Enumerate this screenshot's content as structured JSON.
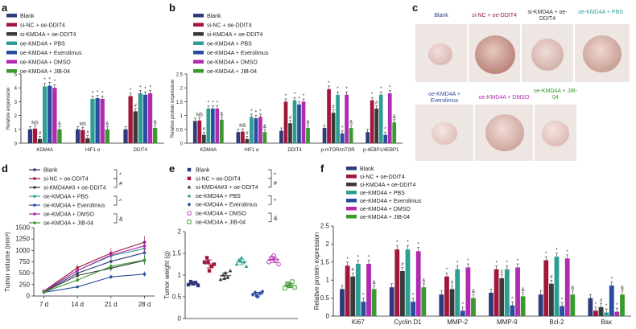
{
  "panel_labels": {
    "a": "a",
    "b": "b",
    "c": "c",
    "d": "d",
    "e": "e",
    "f": "f"
  },
  "colors": {
    "Blank": "#2e3a7c",
    "si-NC + oe-DDIT4": "#a1163a",
    "si-KMD4A + oe-DDIT4": "#3a3a3a",
    "oe-KMD4A + PBS": "#2e9e94",
    "oe-KMD4A + Everolimus": "#2a4da0",
    "oe-KMD4A + DMSO": "#b22ab0",
    "oe-KMD4A + JIB-04": "#3a9a2e"
  },
  "legends": {
    "a": [
      "Blank",
      "si-NC + oe-DDIT4",
      "si-KMD4A + oe-DDIT4",
      "oe-KMD4A + PBS",
      "oe-KMD4A + Everolimus",
      "oe-KMD4A + DMSO",
      "oe-KMD4A + JIB-04"
    ],
    "b": [
      "Blank",
      "si-NC + oe-DDIT4",
      "si-KMD4A + oe-DDIT4",
      "oe-KMD4A + PBS",
      "oe-KMD4A + Everolimus",
      "oe-KMD4A + DMSO",
      "oe-KMD4A + JIB-04"
    ],
    "d": [
      "Blank",
      "si-NC + oe-DDIT4",
      "si-KMD4A#3 + oe-DDIT4",
      "oe-KMD4A + PBS",
      "oe-KMD4A + Everolimus",
      "oe-KMD4A + DMSO",
      "oe-KMD4A + JIB-04"
    ],
    "e": [
      "Blank",
      "si-NC + oe-DDIT4",
      "si-KMD4A#3 + oe-DDIT4",
      "oe-KMD4A + PBS",
      "oe-KMD4A + Everolimus",
      "oe-KMD4A + DMSO",
      "oe-KMD4A + JIB-04"
    ],
    "f": [
      "Blank",
      "si-NC + oe-DDIT4",
      "si-KMD4A + oe-DDIT4",
      "oe-KMD4A + PBS",
      "oe-KMD4A + Everolimus",
      "oe-KMD4A + DMSO",
      "oe-KMD4A + JIB-04"
    ]
  },
  "legend_marks": {
    "d": [
      "*",
      "#",
      "^",
      "&"
    ],
    "e": [
      "*",
      "#",
      "^",
      "&"
    ]
  },
  "photo_labels": [
    "Blank",
    "si-NC + oe-DDIT4",
    "si-KMD4A + oe-DDIT4",
    "oe-KMD4A + PBS",
    "oe-KMD4A + Everolimus",
    "oe-KMD4A + DMSO",
    "oe-KMD4A + JIB-04"
  ],
  "chart_data": [
    {
      "id": "a",
      "type": "bar",
      "ylabel": "Relative expression",
      "ylim": [
        0,
        5
      ],
      "yticks": [
        0,
        1,
        2,
        3,
        4,
        5
      ],
      "categories": [
        "KDM4A",
        "HIF1 α",
        "DDIT4"
      ],
      "series": [
        {
          "name": "Blank",
          "values": [
            1.0,
            1.0,
            1.0
          ]
        },
        {
          "name": "si-NC + oe-DDIT4",
          "values": [
            1.05,
            0.95,
            3.4
          ]
        },
        {
          "name": "si-KMD4A + oe-DDIT4",
          "values": [
            0.3,
            0.35,
            2.3
          ]
        },
        {
          "name": "oe-KMD4A + PBS",
          "values": [
            4.1,
            3.2,
            3.6
          ]
        },
        {
          "name": "oe-KMD4A + Everolimus",
          "values": [
            4.15,
            3.25,
            3.5
          ]
        },
        {
          "name": "oe-KMD4A + DMSO",
          "values": [
            4.0,
            3.2,
            3.6
          ]
        },
        {
          "name": "oe-KMD4A + JIB-04",
          "values": [
            1.0,
            1.0,
            1.1
          ]
        }
      ],
      "annotations": [
        {
          "category": "KDM4A",
          "marks": [
            "",
            "NS",
            "#",
            "*",
            "*",
            "*",
            "&"
          ]
        },
        {
          "category": "HIF1 α",
          "marks": [
            "",
            "NS",
            "#",
            "*",
            "*",
            "*",
            "&"
          ]
        },
        {
          "category": "DDIT4",
          "marks": [
            "",
            "*",
            "#",
            "*",
            "*",
            "*",
            "&"
          ]
        }
      ]
    },
    {
      "id": "b",
      "type": "bar",
      "ylabel": "Relative protein expression",
      "ylim": [
        0,
        2.5
      ],
      "yticks": [
        0,
        0.5,
        1,
        1.5,
        2,
        2.5
      ],
      "categories": [
        "KDM4A",
        "HIF1 α",
        "DDIT4",
        "p-mTOR/mTOR",
        "p-4EBP1/4EBP1"
      ],
      "series": [
        {
          "name": "Blank",
          "values": [
            0.8,
            0.4,
            0.45,
            0.55,
            0.4
          ]
        },
        {
          "name": "si-NC + oe-DDIT4",
          "values": [
            0.82,
            0.42,
            1.5,
            1.95,
            1.55
          ]
        },
        {
          "name": "si-KMD4A + oe-DDIT4",
          "values": [
            0.3,
            0.15,
            0.72,
            1.1,
            1.25
          ]
        },
        {
          "name": "oe-KMD4A + PBS",
          "values": [
            1.25,
            0.95,
            1.55,
            1.75,
            1.75
          ]
        },
        {
          "name": "oe-KMD4A + Everolimus",
          "values": [
            1.25,
            0.9,
            1.4,
            0.35,
            0.3
          ]
        },
        {
          "name": "oe-KMD4A + DMSO",
          "values": [
            1.25,
            0.95,
            1.5,
            1.75,
            1.8
          ]
        },
        {
          "name": "oe-KMD4A + JIB-04",
          "values": [
            0.85,
            0.4,
            0.55,
            0.55,
            0.75
          ]
        }
      ],
      "annotations": [
        {
          "category": "KDM4A",
          "marks": [
            "",
            "NS",
            "#",
            "*",
            "*",
            "*",
            "&"
          ]
        },
        {
          "category": "HIF1 α",
          "marks": [
            "",
            "NS",
            "#",
            "*",
            "*",
            "*",
            "&"
          ]
        },
        {
          "category": "DDIT4",
          "marks": [
            "",
            "*",
            "#",
            "*",
            "*",
            "*",
            "&"
          ]
        },
        {
          "category": "p-mTOR/mTOR",
          "marks": [
            "",
            "*",
            "#",
            "*",
            "^",
            "*",
            "&"
          ]
        },
        {
          "category": "p-4EBP1/4EBP1",
          "marks": [
            "",
            "*",
            "#",
            "*",
            "^",
            "*",
            "&"
          ]
        }
      ]
    },
    {
      "id": "d",
      "type": "line",
      "title": "",
      "xlabel": "",
      "ylabel": "Tumor volume (mm³)",
      "x": [
        "7 d",
        "14 d",
        "21 d",
        "28 d"
      ],
      "ylim": [
        0,
        1500
      ],
      "yticks": [
        0,
        250,
        500,
        750,
        1000,
        1250,
        1500
      ],
      "series": [
        {
          "name": "Blank",
          "values": [
            100,
            500,
            760,
            950
          ]
        },
        {
          "name": "si-NC + oe-DDIT4",
          "values": [
            110,
            620,
            940,
            1180
          ]
        },
        {
          "name": "si-KMD4A#3 + oe-DDIT4",
          "values": [
            90,
            450,
            610,
            780
          ]
        },
        {
          "name": "oe-KMD4A + PBS",
          "values": [
            100,
            560,
            880,
            1040
          ]
        },
        {
          "name": "oe-KMD4A + Everolimus",
          "values": [
            80,
            200,
            420,
            480
          ]
        },
        {
          "name": "oe-KMD4A + DMSO",
          "values": [
            105,
            560,
            900,
            1100
          ]
        },
        {
          "name": "oe-KMD4A + JIB-04",
          "values": [
            85,
            350,
            650,
            790
          ]
        }
      ]
    },
    {
      "id": "e",
      "type": "scatter",
      "ylabel": "Tumor weight (g)",
      "ylim": [
        0,
        2
      ],
      "yticks": [
        0,
        0.5,
        1.0,
        1.5,
        2.0
      ],
      "series": [
        {
          "name": "Blank",
          "values": [
            0.78,
            0.85,
            0.8,
            0.83,
            0.76,
            0.82
          ]
        },
        {
          "name": "si-NC + oe-DDIT4",
          "values": [
            1.3,
            1.4,
            1.1,
            1.2,
            1.25,
            1.3
          ]
        },
        {
          "name": "si-KMD4A#3 + oe-DDIT4",
          "values": [
            0.9,
            1.0,
            1.05,
            0.95,
            1.1,
            0.92
          ]
        },
        {
          "name": "oe-KMD4A + PBS",
          "values": [
            1.25,
            1.35,
            1.4,
            1.3,
            1.2,
            1.32
          ]
        },
        {
          "name": "oe-KMD4A + Everolimus",
          "values": [
            0.55,
            0.6,
            0.5,
            0.58,
            0.62,
            0.52
          ]
        },
        {
          "name": "oe-KMD4A + DMSO",
          "values": [
            1.3,
            1.4,
            1.45,
            1.35,
            1.25,
            1.38
          ]
        },
        {
          "name": "oe-KMD4A + JIB-04",
          "values": [
            0.7,
            0.8,
            0.75,
            0.85,
            0.72,
            0.78
          ]
        }
      ]
    },
    {
      "id": "f",
      "type": "bar",
      "ylabel": "Relative protein expression",
      "ylim": [
        0,
        2.5
      ],
      "yticks": [
        0,
        0.5,
        1,
        1.5,
        2,
        2.5
      ],
      "categories": [
        "Ki67",
        "Cyclin D1",
        "MMP-2",
        "MMP-9",
        "Bcl-2",
        "Bax"
      ],
      "series": [
        {
          "name": "Blank",
          "values": [
            0.75,
            0.8,
            0.6,
            0.65,
            0.6,
            0.5
          ]
        },
        {
          "name": "si-NC + oe-DDIT4",
          "values": [
            1.4,
            1.85,
            1.1,
            1.3,
            1.55,
            0.15
          ]
        },
        {
          "name": "si-KMD4A + oe-DDIT4",
          "values": [
            1.1,
            1.25,
            0.75,
            1.05,
            0.9,
            0.25
          ]
        },
        {
          "name": "oe-KMD4A + PBS",
          "values": [
            1.45,
            1.85,
            1.3,
            1.3,
            1.65,
            0.1
          ]
        },
        {
          "name": "oe-KMD4A + Everolimus",
          "values": [
            0.4,
            0.4,
            0.15,
            0.3,
            0.28,
            0.85
          ]
        },
        {
          "name": "oe-KMD4A + DMSO",
          "values": [
            1.45,
            1.8,
            1.35,
            1.35,
            1.6,
            0.12
          ]
        },
        {
          "name": "oe-KMD4A + JIB-04",
          "values": [
            0.75,
            0.8,
            0.5,
            0.55,
            0.6,
            0.6
          ]
        }
      ],
      "annotations": [
        {
          "category": "Ki67",
          "marks": [
            "",
            "*",
            "#",
            "*",
            "^",
            "*",
            "&"
          ]
        },
        {
          "category": "Cyclin D1",
          "marks": [
            "",
            "*",
            "#",
            "*",
            "^",
            "*",
            "&"
          ]
        },
        {
          "category": "MMP-2",
          "marks": [
            "",
            "*",
            "#",
            "*",
            "^",
            "*",
            "&"
          ]
        },
        {
          "category": "MMP-9",
          "marks": [
            "",
            "*",
            "#",
            "*",
            "^",
            "*",
            "&"
          ]
        },
        {
          "category": "Bcl-2",
          "marks": [
            "",
            "*",
            "#",
            "*",
            "^",
            "*",
            "&"
          ]
        },
        {
          "category": "Bax",
          "marks": [
            "",
            "*",
            "#",
            "*",
            "^",
            "*",
            "&"
          ]
        }
      ]
    }
  ]
}
